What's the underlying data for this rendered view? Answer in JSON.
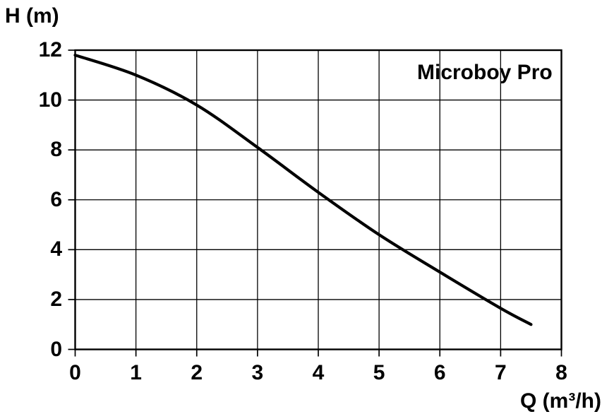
{
  "chart_data": {
    "type": "line",
    "title": "Microboy Pro",
    "xlabel": "Q (m³/h)",
    "ylabel": "H (m)",
    "xlim": [
      0,
      8
    ],
    "ylim": [
      0,
      12
    ],
    "x_ticks": [
      0,
      1,
      2,
      3,
      4,
      5,
      6,
      7,
      8
    ],
    "y_ticks": [
      0,
      2,
      4,
      6,
      8,
      10,
      12
    ],
    "grid": true,
    "legend_position": "inside-top-right",
    "series": [
      {
        "name": "Microboy Pro",
        "x": [
          0,
          1,
          2,
          3,
          4,
          5,
          6,
          7,
          7.5
        ],
        "y": [
          11.8,
          11.0,
          9.8,
          8.1,
          6.3,
          4.6,
          3.1,
          1.65,
          1.0
        ],
        "color": "#000000"
      }
    ],
    "colors": {
      "curve": "#000000",
      "frame": "#000000",
      "grid": "#000000",
      "text": "#000000",
      "background": "#ffffff"
    }
  }
}
